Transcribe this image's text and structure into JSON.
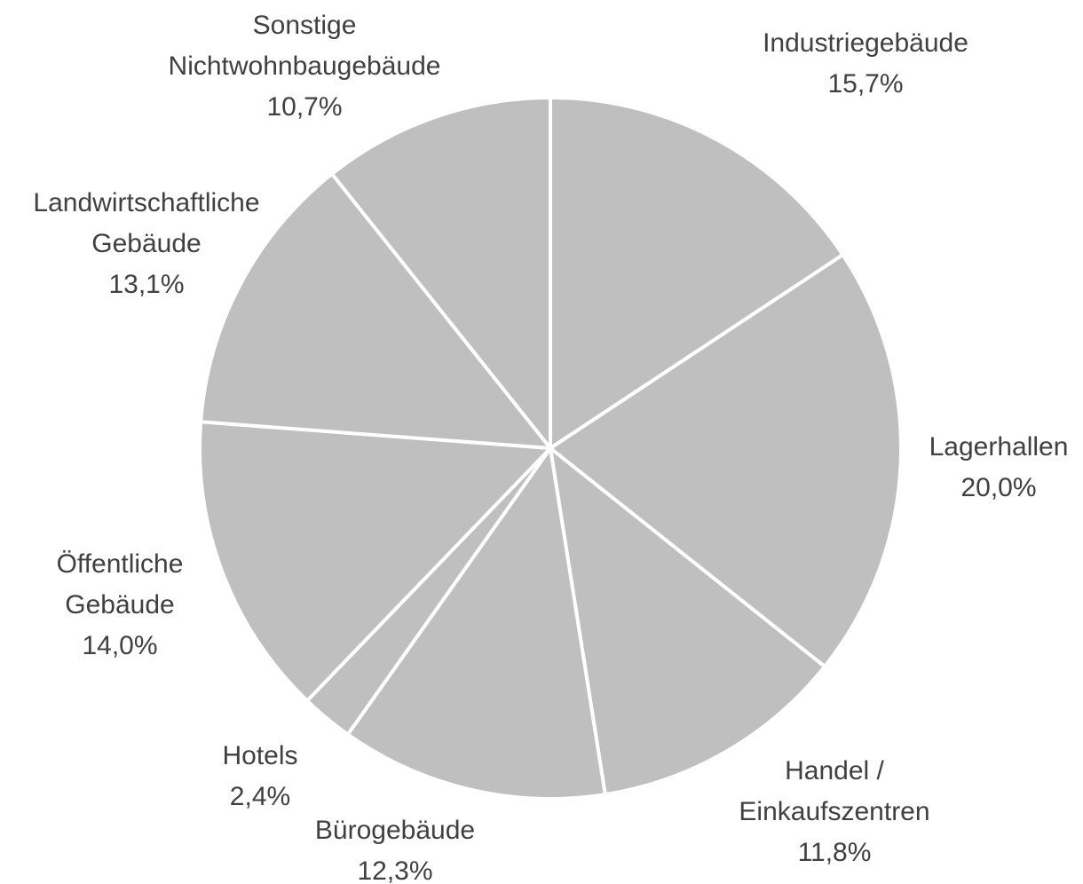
{
  "chart_data": {
    "type": "pie",
    "categories": [
      "Industriegebäude",
      "Lagerhallen",
      "Handel /\nEinkaufszentren",
      "Bürogebäude",
      "Hotels",
      "Öffentliche\nGebäude",
      "Landwirtschaftliche\nGebäude",
      "Sonstige\nNichtwohnbaugebäude"
    ],
    "values": [
      15.7,
      20.0,
      11.8,
      12.3,
      2.4,
      14.0,
      13.1,
      10.7
    ],
    "value_labels": [
      "15,7%",
      "20,0%",
      "11,8%",
      "12,3%",
      "2,4%",
      "14,0%",
      "13,1%",
      "10,7%"
    ],
    "color": "#bfbfbf"
  }
}
